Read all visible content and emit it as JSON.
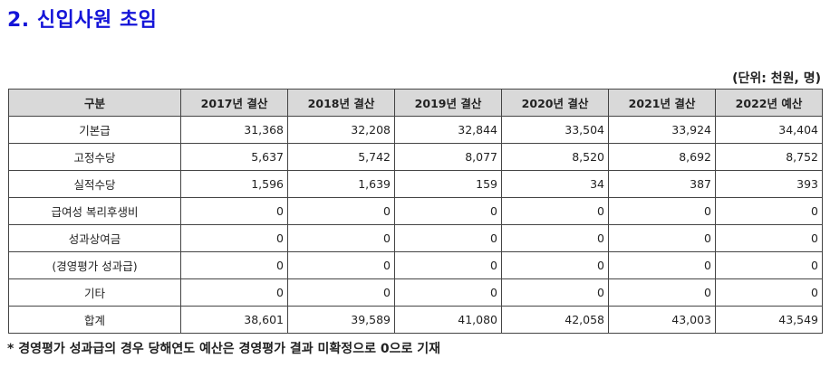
{
  "title": "2. 신입사원 초임",
  "unit": "(단위: 천원, 명)",
  "table": {
    "headers": [
      "구분",
      "2017년 결산",
      "2018년 결산",
      "2019년 결산",
      "2020년 결산",
      "2021년 결산",
      "2022년 예산"
    ],
    "rows": [
      {
        "label": "기본급",
        "values": [
          "31,368",
          "32,208",
          "32,844",
          "33,504",
          "33,924",
          "34,404"
        ]
      },
      {
        "label": "고정수당",
        "values": [
          "5,637",
          "5,742",
          "8,077",
          "8,520",
          "8,692",
          "8,752"
        ]
      },
      {
        "label": "실적수당",
        "values": [
          "1,596",
          "1,639",
          "159",
          "34",
          "387",
          "393"
        ]
      },
      {
        "label": "급여성 복리후생비",
        "values": [
          "0",
          "0",
          "0",
          "0",
          "0",
          "0"
        ]
      },
      {
        "label": "성과상여금",
        "values": [
          "0",
          "0",
          "0",
          "0",
          "0",
          "0"
        ]
      },
      {
        "label": "(경영평가 성과급)",
        "values": [
          "0",
          "0",
          "0",
          "0",
          "0",
          "0"
        ]
      },
      {
        "label": "기타",
        "values": [
          "0",
          "0",
          "0",
          "0",
          "0",
          "0"
        ]
      },
      {
        "label": "합계",
        "values": [
          "38,601",
          "39,589",
          "41,080",
          "42,058",
          "43,003",
          "43,549"
        ]
      }
    ]
  },
  "footnote": "* 경영평가 성과급의 경우 당해연도 예산은 경영평가 결과 미확정으로 0으로 기재"
}
